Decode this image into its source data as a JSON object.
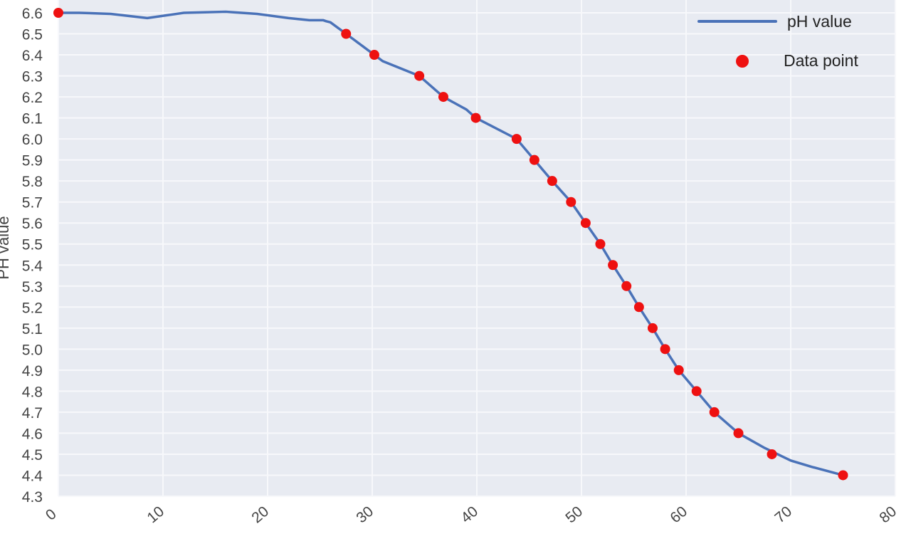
{
  "chart_data": {
    "type": "line",
    "ylabel": "PH value",
    "xlabel": "",
    "xlim": [
      0,
      80
    ],
    "ylim": [
      4.3,
      6.6
    ],
    "x_ticks": [
      0,
      10,
      20,
      30,
      40,
      50,
      60,
      70,
      80
    ],
    "y_ticks": [
      6.6,
      6.5,
      6.4,
      6.3,
      6.2,
      6.1,
      6.0,
      5.9,
      5.8,
      5.7,
      5.6,
      5.5,
      5.4,
      5.3,
      5.2,
      5.1,
      5.0,
      4.9,
      4.8,
      4.7,
      4.6,
      4.5,
      4.4,
      4.3
    ],
    "y_tick_labels": [
      "6.6",
      "6.5",
      "6.4",
      "6.3",
      "6.2",
      "6.1",
      "6.0",
      "5.9",
      "5.8",
      "5.7",
      "5.6",
      "5.5",
      "5.4",
      "5.3",
      "5.2",
      "5.1",
      "5.0",
      "4.9",
      "4.8",
      "4.7",
      "4.6",
      "4.5",
      "4.4",
      "4.3"
    ],
    "x_tick_labels": [
      "0",
      "10",
      "20",
      "30",
      "40",
      "50",
      "60",
      "70",
      "80"
    ],
    "grid": true,
    "legend_placement": "top-right",
    "series": [
      {
        "name": "pH value",
        "kind": "line",
        "color": "#4a72b8",
        "x": [
          0,
          2,
          5,
          8.5,
          12,
          16,
          19,
          22,
          24,
          25.3,
          25.6,
          26,
          27.5,
          30.2,
          31,
          34.5,
          36.8,
          39,
          39.9,
          43.8,
          45.5,
          47.2,
          49,
          50.4,
          51.8,
          53,
          54.3,
          55.5,
          56.8,
          58,
          59.3,
          61,
          62.7,
          65,
          67.5,
          70,
          72,
          75
        ],
        "y": [
          6.6,
          6.6,
          6.595,
          6.575,
          6.6,
          6.605,
          6.595,
          6.575,
          6.565,
          6.565,
          6.56,
          6.555,
          6.5,
          6.4,
          6.37,
          6.3,
          6.2,
          6.14,
          6.1,
          6.0,
          5.9,
          5.8,
          5.7,
          5.6,
          5.5,
          5.4,
          5.3,
          5.2,
          5.1,
          5.0,
          4.9,
          4.8,
          4.7,
          4.6,
          4.53,
          4.47,
          4.44,
          4.4
        ]
      },
      {
        "name": "Data point",
        "kind": "scatter",
        "color": "#ee1111",
        "x": [
          0,
          27.5,
          30.2,
          34.5,
          36.8,
          39.9,
          43.8,
          45.5,
          47.2,
          49,
          50.4,
          51.8,
          53,
          54.3,
          55.5,
          56.8,
          58,
          59.3,
          61,
          62.7,
          65,
          68.2,
          75
        ],
        "y": [
          6.6,
          6.5,
          6.4,
          6.3,
          6.2,
          6.1,
          6.0,
          5.9,
          5.8,
          5.7,
          5.6,
          5.5,
          5.4,
          5.3,
          5.2,
          5.1,
          5.0,
          4.9,
          4.8,
          4.7,
          4.6,
          4.5,
          4.4
        ]
      }
    ],
    "colors": {
      "background": "#e8ebf2",
      "grid": "#f7f8fb"
    }
  }
}
